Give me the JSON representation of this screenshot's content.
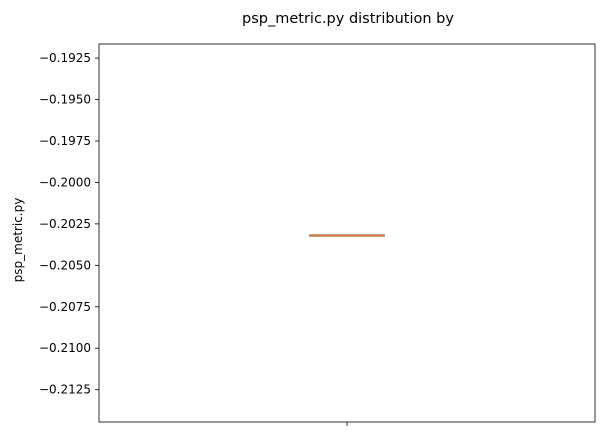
{
  "chart_data": {
    "type": "box",
    "title": "psp_metric.py distribution by",
    "xlabel": "",
    "ylabel": "psp_metric.py",
    "ylim": [
      -0.21445,
      -0.19165
    ],
    "yticks": [
      -0.1925,
      -0.195,
      -0.1975,
      -0.2,
      -0.2025,
      -0.205,
      -0.2075,
      -0.21,
      -0.2125
    ],
    "ytick_labels": [
      "−0.1925",
      "−0.1950",
      "−0.1975",
      "−0.2000",
      "−0.2025",
      "−0.2050",
      "−0.2075",
      "−0.2100",
      "−0.2125"
    ],
    "categories": [
      ""
    ],
    "boxes": [
      {
        "q1": -0.2032,
        "median": -0.2032,
        "q3": -0.2032,
        "whisker_low": -0.2032,
        "whisker_high": -0.2032
      }
    ],
    "colors": {
      "box": "#1f77b4",
      "median": "#ff7f0e",
      "box_visible": "#8c6a4a",
      "median_visible": "#e07c3e"
    },
    "grid": false
  }
}
